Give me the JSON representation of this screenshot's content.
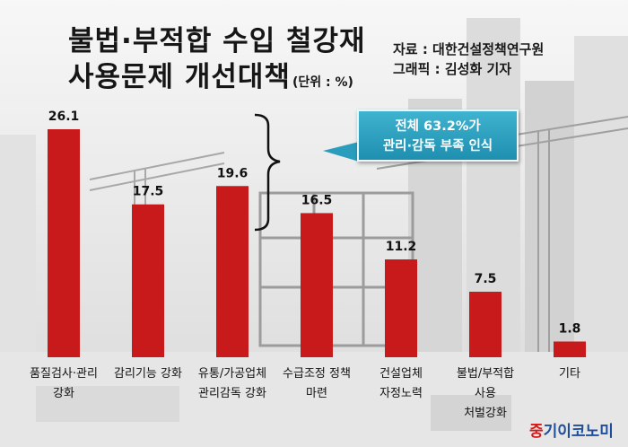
{
  "header": {
    "title_line1": "불법·부적합 수입 철강재",
    "title_line2": "사용문제 개선대책",
    "unit": "(단위 : %)"
  },
  "credits": {
    "source": "자료 : 대한건설정책연구원",
    "graphic": "그래픽 : 김성화 기자"
  },
  "callout": {
    "line1": "전체 63.2%가",
    "line2": "관리·감독 부족 인식"
  },
  "watermark": {
    "part1": "중",
    "part2": "기이코노미"
  },
  "colors": {
    "bar": "#c8191b",
    "callout": "#2a9dbd",
    "watermark_red": "#d11a1a",
    "watermark_blue": "#1d4e9e"
  },
  "chart_data": {
    "type": "bar",
    "title": "불법·부적합 수입 철강재 사용문제 개선대책",
    "unit": "(단위 : %)",
    "categories": [
      [
        "품질검사·관리",
        "강화"
      ],
      [
        "감리기능 강화"
      ],
      [
        "유통/가공업체",
        "관리감독 강화"
      ],
      [
        "수급조정 정책",
        "마련"
      ],
      [
        "건설업체",
        "자정노력"
      ],
      [
        "불법/부적합",
        "사용",
        "처벌강화"
      ],
      [
        "기타"
      ]
    ],
    "values": [
      26.1,
      17.5,
      19.6,
      16.5,
      11.2,
      7.5,
      1.8
    ],
    "value_labels": [
      "26.1",
      "17.5",
      "19.6",
      "16.5",
      "11.2",
      "7.5",
      "1.8"
    ],
    "ylim": [
      0,
      26.1
    ],
    "grid": false,
    "legend": "none"
  }
}
